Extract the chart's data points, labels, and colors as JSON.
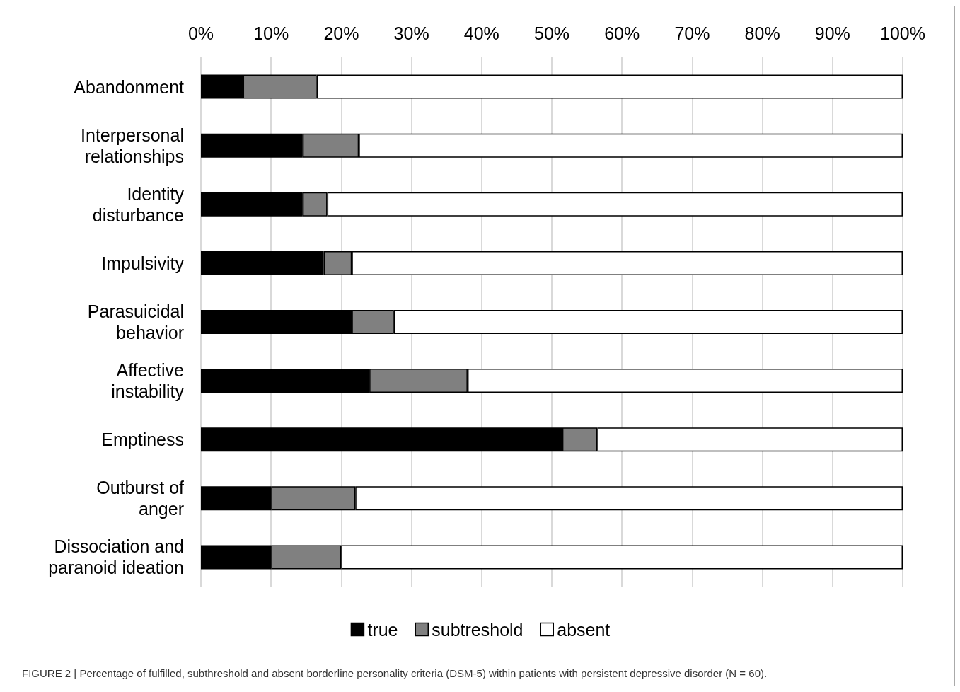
{
  "chart_data": {
    "type": "bar",
    "orientation": "horizontal",
    "stacked": true,
    "categories": [
      "Abandonment",
      "Interpersonal\nrelationships",
      "Identity\ndisturbance",
      "Impulsivity",
      "Parasuicidal\nbehavior",
      "Affective\ninstability",
      "Emptiness",
      "Outburst of\nanger",
      "Dissociation and\nparanoid ideation"
    ],
    "series": [
      {
        "name": "true",
        "color": "#000000",
        "values": [
          6,
          14.5,
          14.5,
          17.5,
          21.5,
          24,
          51.5,
          10,
          10
        ]
      },
      {
        "name": "subtreshold",
        "color": "#808080",
        "values": [
          10.5,
          8,
          3.5,
          4,
          6,
          14,
          5,
          12,
          10
        ]
      },
      {
        "name": "absent",
        "color": "#ffffff",
        "values": [
          83.5,
          77.5,
          82,
          78.5,
          72.5,
          62,
          43.5,
          78,
          80
        ]
      }
    ],
    "xlim": [
      0,
      100
    ],
    "xticks": [
      {
        "value": 0,
        "label": "0%"
      },
      {
        "value": 10,
        "label": "10%"
      },
      {
        "value": 20,
        "label": "20%"
      },
      {
        "value": 30,
        "label": "30%"
      },
      {
        "value": 40,
        "label": "40%"
      },
      {
        "value": 50,
        "label": "50%"
      },
      {
        "value": 60,
        "label": "60%"
      },
      {
        "value": 70,
        "label": "70%"
      },
      {
        "value": 80,
        "label": "80%"
      },
      {
        "value": 90,
        "label": "90%"
      },
      {
        "value": 100,
        "label": "100%"
      }
    ],
    "grid": "x",
    "legend": "bottom",
    "annotations": [
      "FIGURE 2 | Percentage of fulfilled, subthreshold and absent borderline personality criteria (DSM-5) within patients with persistent depressive disorder (N = 60)."
    ]
  }
}
